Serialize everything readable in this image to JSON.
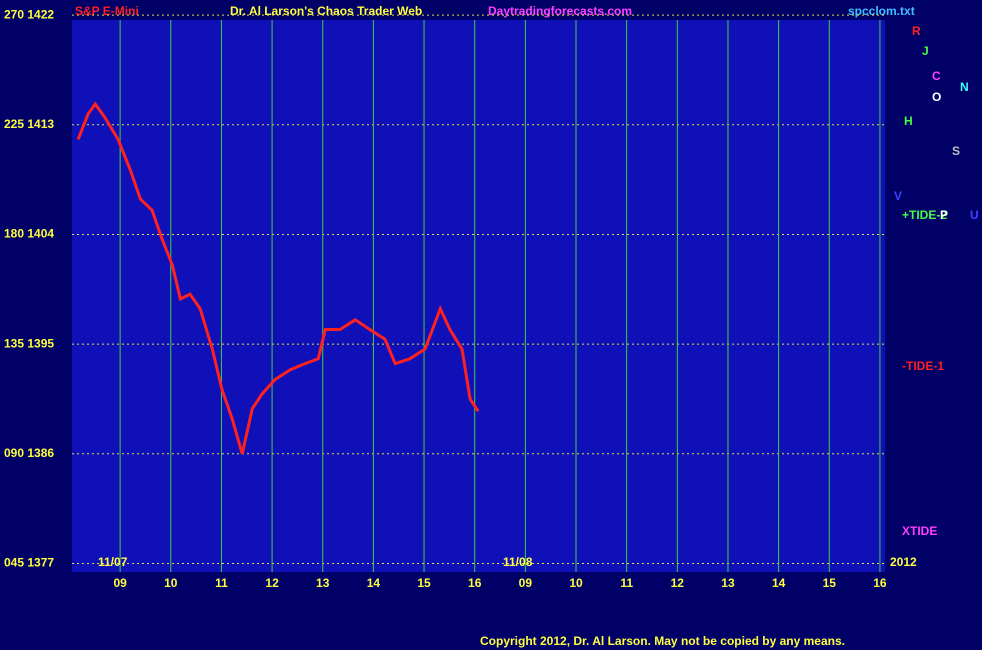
{
  "chart_data": {
    "type": "line",
    "title": "S&P E-Mini",
    "subtitle": "Dr. Al Larson's Chaos Trader Web",
    "site": "Daytradingforecasts.com",
    "file_name": "spcclom.txt",
    "copyright": "Copyright 2012, Dr. Al Larson. May not be copied by any means.",
    "date_labels": [
      "11/07",
      "11/08",
      "2012"
    ],
    "side_labels": [
      "R",
      "J",
      "C",
      "O",
      "N",
      "H",
      "S",
      "+TIDE-2",
      "-TIDE-1",
      "XTIDE",
      "P",
      "U",
      "V"
    ],
    "x": [
      0.17,
      0.37,
      0.51,
      0.7,
      0.96,
      1.2,
      1.4,
      1.63,
      1.83,
      2.03,
      2.19,
      2.38,
      2.58,
      2.82,
      3.01,
      3.21,
      3.41,
      3.61,
      3.8,
      4.06,
      4.36,
      4.65,
      4.91,
      5.05,
      5.34,
      5.64,
      5.93,
      6.23,
      6.43,
      6.72,
      7.02,
      7.32,
      7.51,
      7.75,
      7.91,
      8.07
    ],
    "series": [
      {
        "name": "S&P E-Mini",
        "color": "#ff2020",
        "values": [
          1411.8,
          1413.9,
          1414.7,
          1413.6,
          1411.8,
          1409.3,
          1406.9,
          1406.0,
          1403.6,
          1401.5,
          1398.7,
          1399.1,
          1397.9,
          1394.6,
          1391.3,
          1388.9,
          1386.0,
          1389.7,
          1390.9,
          1392.1,
          1392.9,
          1393.4,
          1393.8,
          1396.2,
          1396.2,
          1397.0,
          1396.2,
          1395.4,
          1393.4,
          1393.8,
          1394.6,
          1397.9,
          1396.2,
          1394.6,
          1390.5,
          1389.5
        ]
      }
    ],
    "xlim": [
      0.05,
      16.1
    ],
    "ylim": [
      1376.3,
      1421.6
    ],
    "xticks": [
      {
        "value": 1,
        "label": "09"
      },
      {
        "value": 2,
        "label": "10"
      },
      {
        "value": 3,
        "label": "11"
      },
      {
        "value": 4,
        "label": "12"
      },
      {
        "value": 5,
        "label": "13"
      },
      {
        "value": 6,
        "label": "14"
      },
      {
        "value": 7,
        "label": "15"
      },
      {
        "value": 8,
        "label": "16"
      },
      {
        "value": 9,
        "label": "09"
      },
      {
        "value": 10,
        "label": "10"
      },
      {
        "value": 11,
        "label": "11"
      },
      {
        "value": 12,
        "label": "12"
      },
      {
        "value": 13,
        "label": "13"
      },
      {
        "value": 14,
        "label": "14"
      },
      {
        "value": 15,
        "label": "15"
      },
      {
        "value": 16,
        "label": "16"
      }
    ],
    "yticks": [
      {
        "value": 1422,
        "label": "270 1422"
      },
      {
        "value": 1413,
        "label": "225 1413"
      },
      {
        "value": 1404,
        "label": "180 1404"
      },
      {
        "value": 1395,
        "label": "135 1395"
      },
      {
        "value": 1386,
        "label": "090 1386"
      },
      {
        "value": 1377,
        "label": "045 1377"
      }
    ],
    "grid": true
  }
}
